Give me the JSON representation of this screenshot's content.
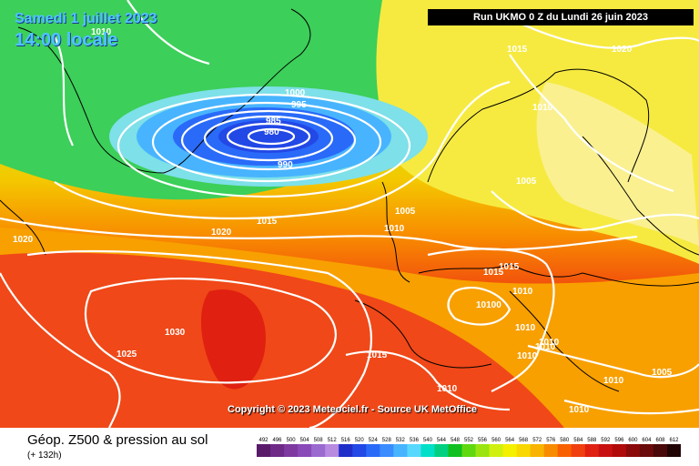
{
  "header": {
    "date": "Samedi 1 juillet 2023",
    "local_time": "14:00 locale",
    "run_info": "Run UKMO 0 Z du Lundi 26 juin 2023"
  },
  "copyright": "Copyright © 2023 Meteociel.fr - Source UK MetOffice",
  "footer": {
    "title": "Géop. Z500 & pression au sol",
    "lead_time": "(+ 132h)"
  },
  "legend": {
    "values": [
      "492",
      "496",
      "500",
      "504",
      "508",
      "512",
      "516",
      "520",
      "524",
      "528",
      "532",
      "536",
      "540",
      "544",
      "548",
      "552",
      "556",
      "560",
      "564",
      "568",
      "572",
      "576",
      "580",
      "584",
      "588",
      "592",
      "596",
      "600",
      "604",
      "608",
      "612"
    ],
    "colors": [
      "#5a1a6a",
      "#6e2a86",
      "#7f3aa0",
      "#8a4ab8",
      "#9a6ad0",
      "#b88ae0",
      "#1e2ec8",
      "#2248e6",
      "#2a6af8",
      "#3a8cff",
      "#48b4ff",
      "#58d8ff",
      "#00e0c8",
      "#00d080",
      "#10c020",
      "#60d810",
      "#9ae410",
      "#d0f010",
      "#f4f000",
      "#f8d800",
      "#f8b400",
      "#f88c00",
      "#f86000",
      "#f04010",
      "#e02010",
      "#c81010",
      "#b00a0a",
      "#8a0a0a",
      "#6a0a0a",
      "#4a0808",
      "#200404"
    ]
  },
  "isobar_labels": [
    {
      "text": "1010"
    },
    {
      "text": "1015"
    },
    {
      "text": "1020"
    },
    {
      "text": "1010"
    },
    {
      "text": "1000"
    },
    {
      "text": "995"
    },
    {
      "text": "985"
    },
    {
      "text": "980"
    },
    {
      "text": "990"
    },
    {
      "text": "1005"
    },
    {
      "text": "1005"
    },
    {
      "text": "1010"
    },
    {
      "text": "1015"
    },
    {
      "text": "1020"
    },
    {
      "text": "1020"
    },
    {
      "text": "1015"
    },
    {
      "text": "1015"
    },
    {
      "text": "1010"
    },
    {
      "text": "10100"
    },
    {
      "text": "1010"
    },
    {
      "text": "1030"
    },
    {
      "text": "1025"
    },
    {
      "text": "1015"
    },
    {
      "text": "1010"
    },
    {
      "text": "1010"
    },
    {
      "text": "1010"
    },
    {
      "text": "1010"
    },
    {
      "text": "1010"
    },
    {
      "text": "1005"
    },
    {
      "text": "1010"
    }
  ]
}
